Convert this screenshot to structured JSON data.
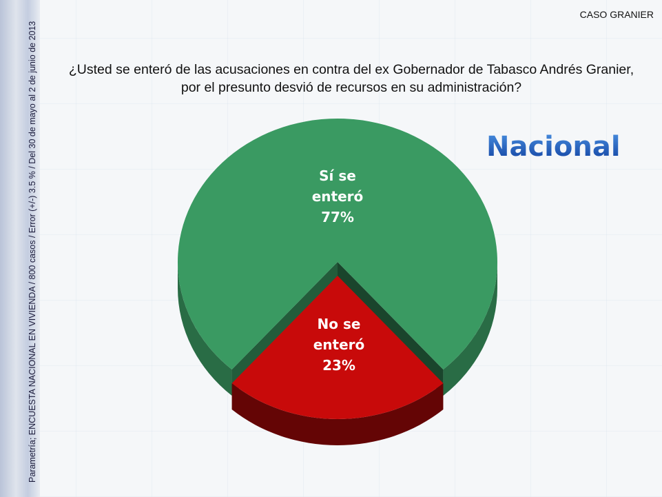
{
  "header": {
    "case_label": "CASO GRANIER",
    "question_line1": "¿Usted se enteró de las acusaciones en contra del ex Gobernador de Tabasco Andrés Granier,",
    "question_line2": "por el presunto desvió de recursos en su administración?",
    "scope": "Nacional"
  },
  "footer_note": "Parametría; ENCUESTA NACIONAL EN VIVIENDA / 800 casos / Error (+/-) 3.5 % / Del 30 de mayo al 2  de junio de 2013",
  "chart_data": {
    "type": "pie",
    "title": "¿Usted se enteró de las acusaciones en contra del ex Gobernador de Tabasco Andrés Granier, por el presunto desvió de recursos en su administración?",
    "slices": [
      {
        "label": "Sí se enteró",
        "label_lines": [
          "Sí se",
          "enteró",
          "77%"
        ],
        "value": 77,
        "color": "#3a9a62"
      },
      {
        "label": "No se enteró",
        "label_lines": [
          "No se",
          "enteró",
          "23%"
        ],
        "value": 23,
        "color": "#c80a0a"
      }
    ]
  }
}
